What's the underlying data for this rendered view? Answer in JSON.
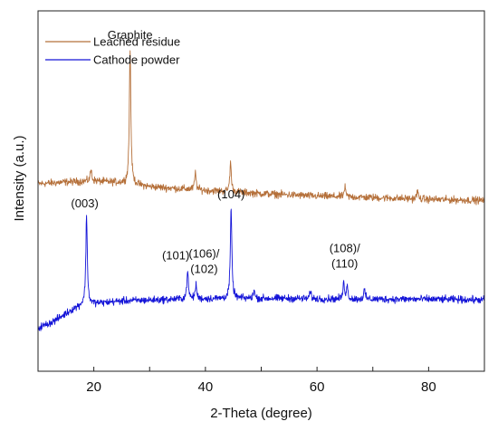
{
  "chart_data": {
    "type": "line",
    "xlabel": "2-Theta (degree)",
    "ylabel": "Intensity (a.u.)",
    "xlim": [
      10,
      90
    ],
    "ylim": [
      0,
      100
    ],
    "xticks": [
      20,
      40,
      60,
      80
    ],
    "yticks_labeled": false,
    "grid": false,
    "legend_position": "top-left",
    "series": [
      {
        "name": "Leached residue",
        "color": "#b5703a",
        "baseline": [
          [
            10,
            52
          ],
          [
            15,
            52.5
          ],
          [
            20,
            52.8
          ],
          [
            25,
            52.3
          ],
          [
            30,
            51.2
          ],
          [
            40,
            50.2
          ],
          [
            50,
            49.3
          ],
          [
            60,
            48.6
          ],
          [
            70,
            48.2
          ],
          [
            80,
            47.7
          ],
          [
            90,
            47.4
          ]
        ],
        "peaks": [
          {
            "x": 19.5,
            "y": 56,
            "label": ""
          },
          {
            "x": 26.5,
            "y": 89,
            "label": "Graphite"
          },
          {
            "x": 38.2,
            "y": 55,
            "label": ""
          },
          {
            "x": 44.5,
            "y": 58,
            "label": ""
          },
          {
            "x": 65.0,
            "y": 51,
            "label": ""
          },
          {
            "x": 78.0,
            "y": 50,
            "label": ""
          }
        ]
      },
      {
        "name": "Cathode powder",
        "color": "#1414d8",
        "baseline": [
          [
            10,
            12
          ],
          [
            13,
            14
          ],
          [
            16,
            17
          ],
          [
            18,
            18.5
          ],
          [
            25,
            19.5
          ],
          [
            35,
            20
          ],
          [
            45,
            20.2
          ],
          [
            55,
            20.2
          ],
          [
            65,
            20
          ],
          [
            80,
            20
          ],
          [
            90,
            19.8
          ]
        ],
        "peaks": [
          {
            "x": 18.7,
            "y": 43,
            "label": "(003)"
          },
          {
            "x": 36.8,
            "y": 28,
            "label": "(101)"
          },
          {
            "x": 38.3,
            "y": 24,
            "label": "(106)/\n(102)"
          },
          {
            "x": 44.6,
            "y": 45,
            "label": "(104)"
          },
          {
            "x": 48.7,
            "y": 22.5,
            "label": ""
          },
          {
            "x": 58.8,
            "y": 22,
            "label": ""
          },
          {
            "x": 64.8,
            "y": 24.5,
            "label": "(108)/\n(110)"
          },
          {
            "x": 65.4,
            "y": 23.5,
            "label": ""
          },
          {
            "x": 68.5,
            "y": 22.5,
            "label": ""
          }
        ]
      }
    ]
  }
}
